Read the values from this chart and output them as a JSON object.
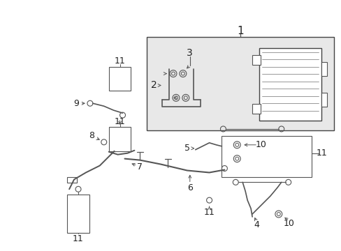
{
  "bg_color": "#ffffff",
  "fig_width": 4.89,
  "fig_height": 3.6,
  "dpi": 100,
  "line_color": "#555555",
  "text_color": "#222222"
}
